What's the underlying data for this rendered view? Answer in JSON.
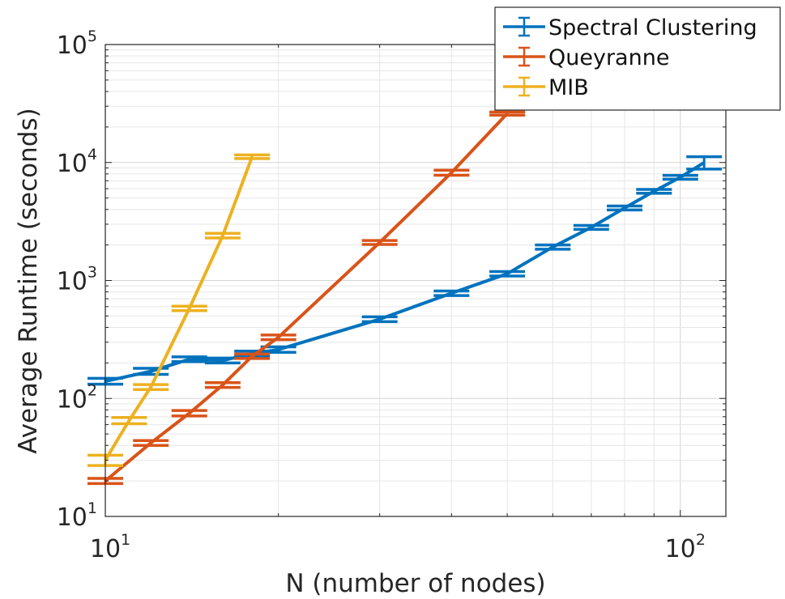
{
  "chart_data": {
    "type": "line",
    "xlabel": "N (number of nodes)",
    "ylabel": "Average Runtime (seconds)",
    "xscale": "log",
    "yscale": "log",
    "xlim": [
      10,
      120
    ],
    "ylim": [
      10,
      100000
    ],
    "grid": true,
    "minor_grid": true,
    "legend_position": "top-right",
    "x_ticks": [
      {
        "base": "10",
        "exp": "1",
        "value": 10
      },
      {
        "base": "10",
        "exp": "2",
        "value": 100
      }
    ],
    "y_ticks": [
      {
        "base": "10",
        "exp": "1",
        "value": 10
      },
      {
        "base": "10",
        "exp": "2",
        "value": 100
      },
      {
        "base": "10",
        "exp": "3",
        "value": 1000
      },
      {
        "base": "10",
        "exp": "4",
        "value": 10000
      },
      {
        "base": "10",
        "exp": "5",
        "value": 100000
      }
    ],
    "series": [
      {
        "name": "Spectral Clustering",
        "color": "#0072BD",
        "x": [
          10,
          12,
          14,
          16,
          18,
          20,
          30,
          40,
          50,
          60,
          70,
          80,
          90,
          100,
          110
        ],
        "y": [
          140,
          170,
          215,
          210,
          240,
          260,
          470,
          780,
          1140,
          1920,
          2820,
          4120,
          5700,
          7500,
          10000
        ],
        "err": [
          8,
          10,
          10,
          10,
          12,
          14,
          22,
          35,
          50,
          80,
          110,
          160,
          210,
          280,
          1200
        ]
      },
      {
        "name": "Queyranne",
        "color": "#D95319",
        "x": [
          10,
          12,
          14,
          16,
          18,
          20,
          30,
          40,
          50
        ],
        "y": [
          20,
          42,
          75,
          130,
          228,
          330,
          2100,
          8200,
          26000
        ],
        "err": [
          1,
          2,
          4,
          6,
          10,
          15,
          80,
          400,
          800
        ]
      },
      {
        "name": "MIB",
        "color": "#EDB120",
        "x": [
          10,
          11,
          12,
          14,
          16,
          18
        ],
        "y": [
          30,
          65,
          125,
          580,
          2400,
          11200
        ],
        "err": [
          3,
          4,
          6,
          25,
          110,
          400
        ]
      }
    ]
  }
}
